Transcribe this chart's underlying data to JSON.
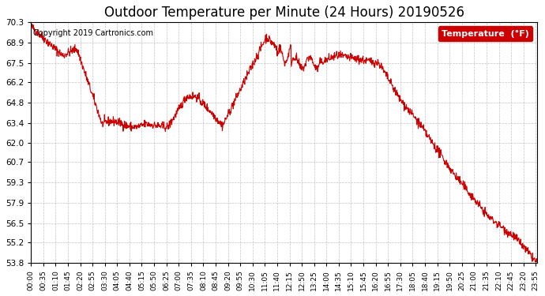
{
  "title": "Outdoor Temperature per Minute (24 Hours) 20190526",
  "copyright_text": "Copyright 2019 Cartronics.com",
  "legend_label": "Temperature  (°F)",
  "line_color": "#cc0000",
  "background_color": "#ffffff",
  "grid_color": "#aaaaaa",
  "ylim": [
    53.8,
    70.3
  ],
  "yticks": [
    53.8,
    55.2,
    56.5,
    57.9,
    59.3,
    60.7,
    62.0,
    63.4,
    64.8,
    66.2,
    67.5,
    68.9,
    70.3
  ],
  "x_tick_labels": [
    "00:00",
    "00:35",
    "01:10",
    "01:45",
    "02:20",
    "02:55",
    "03:30",
    "04:05",
    "04:40",
    "05:15",
    "05:50",
    "06:25",
    "07:00",
    "07:35",
    "08:10",
    "08:45",
    "09:20",
    "09:55",
    "10:30",
    "11:05",
    "11:40",
    "12:15",
    "12:50",
    "13:25",
    "14:00",
    "14:35",
    "15:10",
    "15:45",
    "16:20",
    "16:55",
    "17:30",
    "18:05",
    "18:40",
    "19:15",
    "19:50",
    "20:25",
    "21:00",
    "21:35",
    "22:10",
    "22:45",
    "23:20",
    "23:55"
  ]
}
